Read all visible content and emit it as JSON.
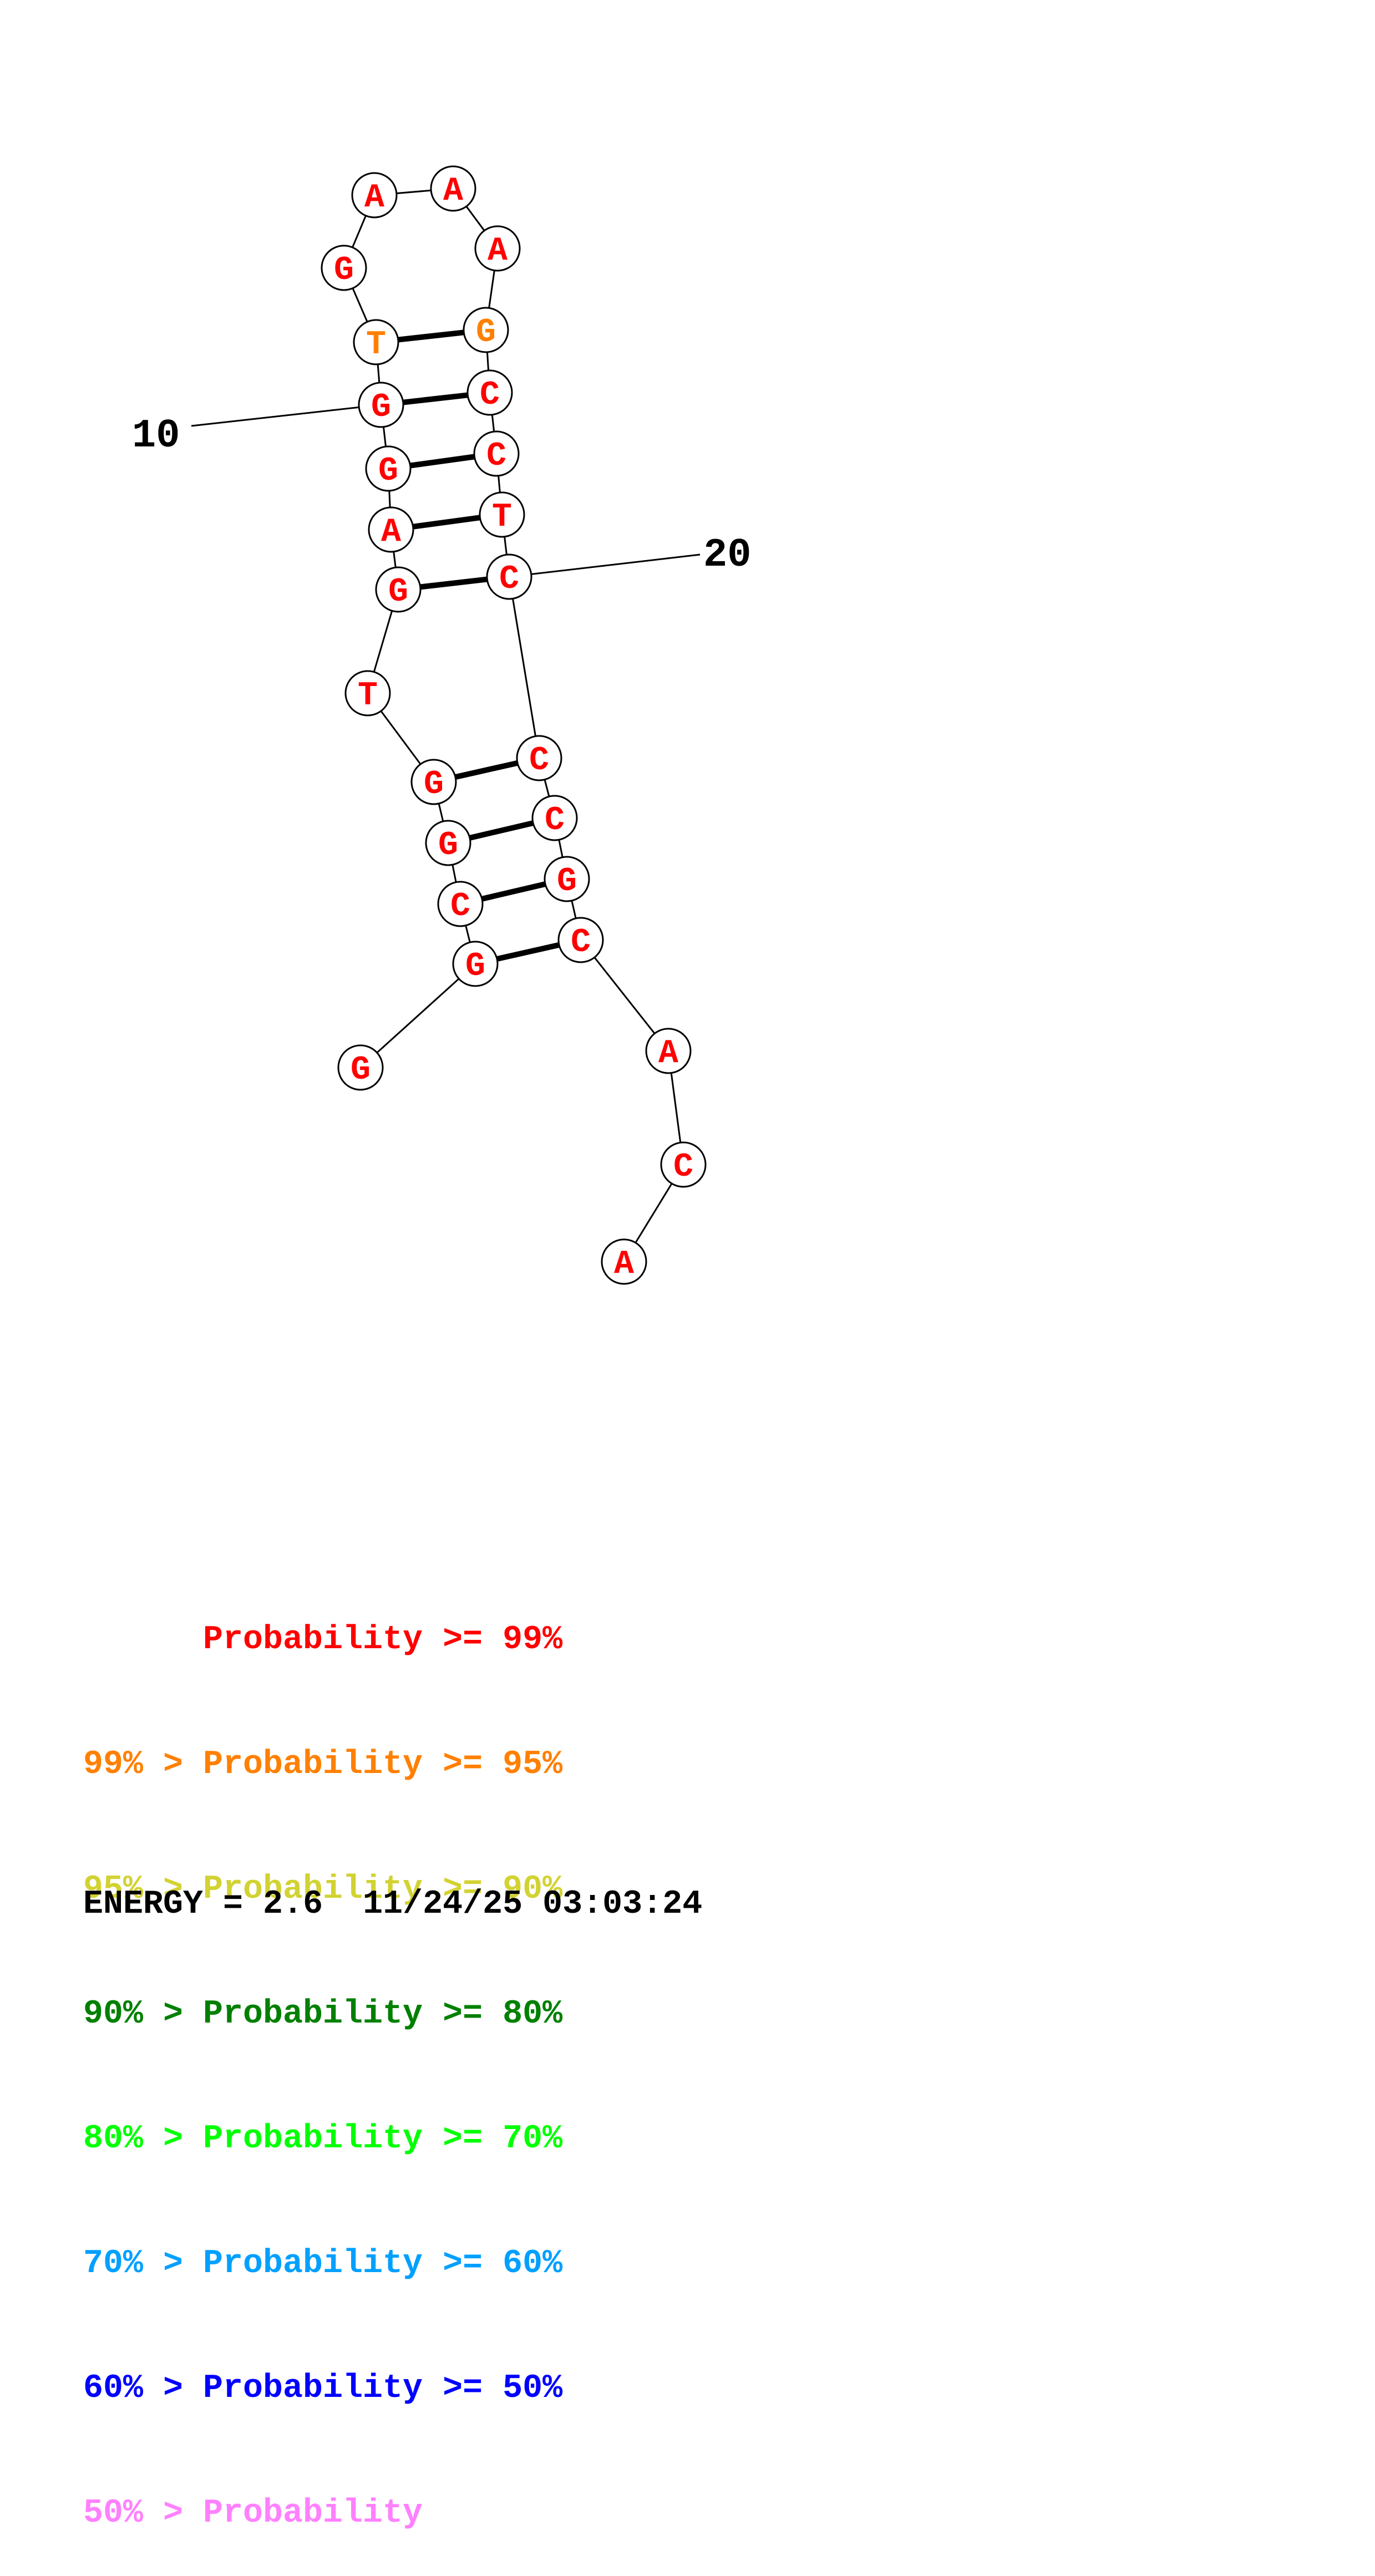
{
  "diagram": {
    "nucleotides": [
      {
        "n": 1,
        "base": "G",
        "color": "#ff0000"
      },
      {
        "n": 2,
        "base": "G",
        "color": "#ff0000"
      },
      {
        "n": 3,
        "base": "C",
        "color": "#ff0000"
      },
      {
        "n": 4,
        "base": "G",
        "color": "#ff0000"
      },
      {
        "n": 5,
        "base": "G",
        "color": "#ff0000"
      },
      {
        "n": 6,
        "base": "T",
        "color": "#ff0000"
      },
      {
        "n": 7,
        "base": "G",
        "color": "#ff0000"
      },
      {
        "n": 8,
        "base": "A",
        "color": "#ff0000"
      },
      {
        "n": 9,
        "base": "G",
        "color": "#ff0000"
      },
      {
        "n": 10,
        "base": "G",
        "color": "#ff0000"
      },
      {
        "n": 11,
        "base": "T",
        "color": "#ff8000"
      },
      {
        "n": 12,
        "base": "G",
        "color": "#ff0000"
      },
      {
        "n": 13,
        "base": "A",
        "color": "#ff0000"
      },
      {
        "n": 14,
        "base": "A",
        "color": "#ff0000"
      },
      {
        "n": 15,
        "base": "A",
        "color": "#ff0000"
      },
      {
        "n": 16,
        "base": "G",
        "color": "#ff8000"
      },
      {
        "n": 17,
        "base": "C",
        "color": "#ff0000"
      },
      {
        "n": 18,
        "base": "C",
        "color": "#ff0000"
      },
      {
        "n": 19,
        "base": "T",
        "color": "#ff0000"
      },
      {
        "n": 20,
        "base": "C",
        "color": "#ff0000"
      },
      {
        "n": 21,
        "base": "C",
        "color": "#ff0000"
      },
      {
        "n": 22,
        "base": "C",
        "color": "#ff0000"
      },
      {
        "n": 23,
        "base": "G",
        "color": "#ff0000"
      },
      {
        "n": 24,
        "base": "C",
        "color": "#ff0000"
      },
      {
        "n": 25,
        "base": "A",
        "color": "#ff0000"
      },
      {
        "n": 26,
        "base": "C",
        "color": "#ff0000"
      },
      {
        "n": 27,
        "base": "A",
        "color": "#ff0000"
      }
    ],
    "pairs": [
      [
        2,
        24
      ],
      [
        3,
        23
      ],
      [
        4,
        22
      ],
      [
        5,
        21
      ],
      [
        7,
        20
      ],
      [
        8,
        19
      ],
      [
        9,
        18
      ],
      [
        10,
        17
      ],
      [
        11,
        16
      ]
    ],
    "position_labels": [
      {
        "text": "10",
        "nucleotide": 10
      },
      {
        "text": "20",
        "nucleotide": 20
      }
    ]
  },
  "legend": [
    {
      "left": "",
      "right": "Probability >= 99%",
      "color": "#ff0000"
    },
    {
      "left": "99% > ",
      "right": "Probability >= 95%",
      "color": "#ff8000"
    },
    {
      "left": "95% > ",
      "right": "Probability >= 90%",
      "color": "#d2d232"
    },
    {
      "left": "90% > ",
      "right": "Probability >= 80%",
      "color": "#008000"
    },
    {
      "left": "80% > ",
      "right": "Probability >= 70%",
      "color": "#00ff00"
    },
    {
      "left": "70% > ",
      "right": "Probability >= 60%",
      "color": "#00a0ff"
    },
    {
      "left": "60% > ",
      "right": "Probability >= 50%",
      "color": "#0000ff"
    },
    {
      "left": "50% > ",
      "right": "Probability",
      "color": "#ff80ff"
    }
  ],
  "footer": {
    "energy": "ENERGY = 2.6",
    "timestamp": "11/24/25 03:03:24"
  }
}
